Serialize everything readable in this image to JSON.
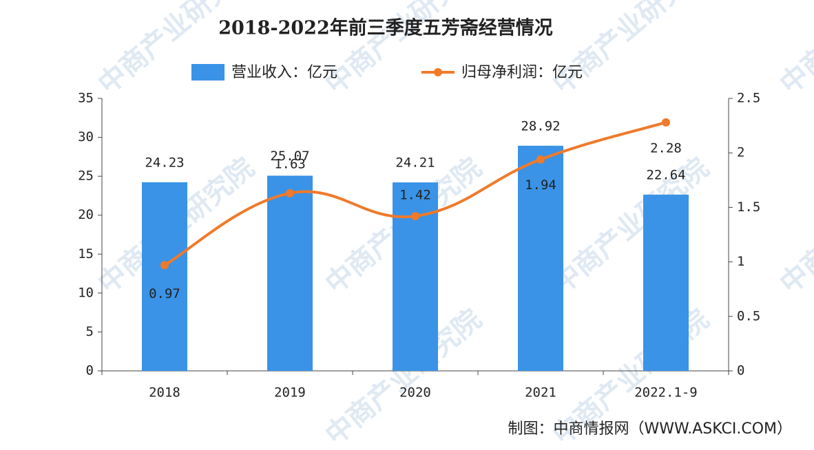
{
  "chart_data": {
    "type": "bar-line",
    "title": "2018-2022年前三季度五芳斋经营情况",
    "categories": [
      "2018",
      "2019",
      "2020",
      "2021",
      "2022.1-9"
    ],
    "series": [
      {
        "name": "营业收入：亿元",
        "type": "bar",
        "color": "#3a93e6",
        "values": [
          24.23,
          25.07,
          24.21,
          28.92,
          22.64
        ]
      },
      {
        "name": "归母净利润：亿元",
        "type": "line",
        "axis": "y2",
        "color": "#f07a2a",
        "values": [
          0.97,
          1.63,
          1.42,
          1.94,
          2.28
        ]
      }
    ],
    "ylim": [
      0,
      35
    ],
    "yticks": [
      0,
      5,
      10,
      15,
      20,
      25,
      30,
      35
    ],
    "y2lim": [
      0,
      2.5
    ],
    "y2ticks": [
      0,
      0.5,
      1,
      1.5,
      2,
      2.5
    ],
    "source": "制图：中商情报网（WWW.ASKCI.COM）",
    "watermark": "中商产业研究院"
  }
}
